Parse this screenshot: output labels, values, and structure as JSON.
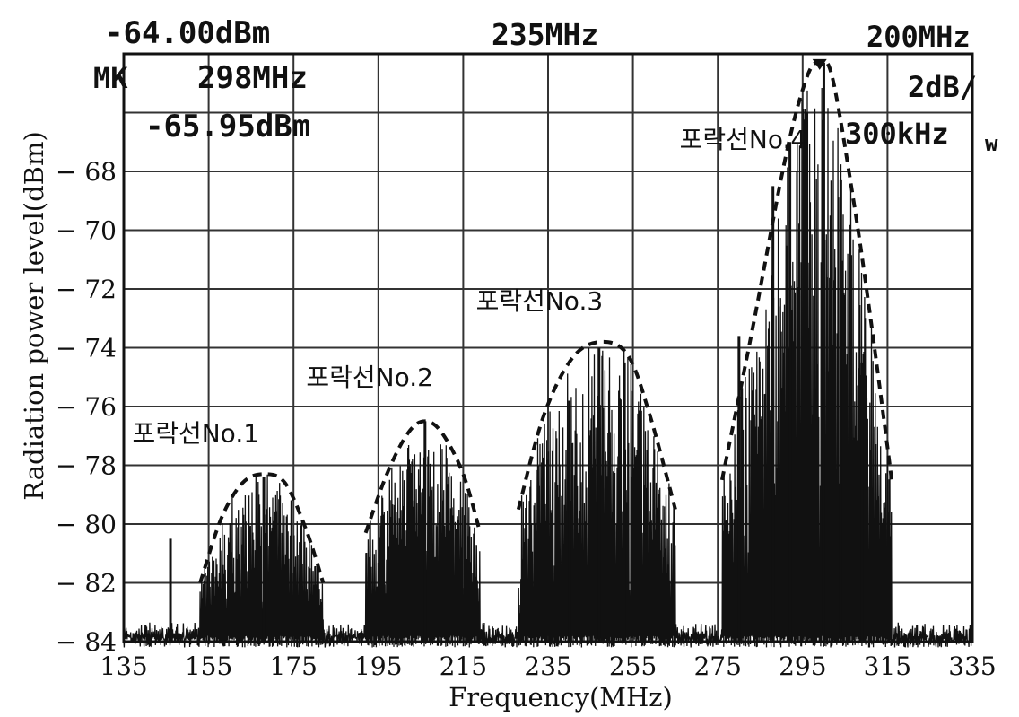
{
  "header": {
    "ref_level": "-64.00dBm",
    "center_freq": "235MHz",
    "span": "200MHz",
    "marker_label": "MK",
    "marker_freq": "298MHz",
    "marker_level": "-65.95dBm",
    "scale": "2dB/",
    "rbw": "300kHz",
    "rbw_unit": "w"
  },
  "chart_data": {
    "type": "line",
    "xlabel": "Frequency(MHz)",
    "ylabel": "Radiation power level(dBm)",
    "xlim": [
      135,
      335
    ],
    "ylim": [
      -84,
      -64
    ],
    "x_ticks": [
      135,
      155,
      175,
      195,
      215,
      235,
      255,
      275,
      295,
      315,
      335
    ],
    "y_ticks": [
      -68,
      -70,
      -72,
      -74,
      -76,
      -78,
      -80,
      -82,
      -84
    ],
    "grid": true,
    "annotations": [
      {
        "text": "포락선No.1",
        "x": 137,
        "y": -77.2
      },
      {
        "text": "포락선No.2",
        "x": 178,
        "y": -75.3
      },
      {
        "text": "포락선No.3",
        "x": 218,
        "y": -72.7
      },
      {
        "text": "포락선No.4",
        "x": 266,
        "y": -67.2
      }
    ],
    "envelopes": [
      {
        "peak_x": 168,
        "peak_y": -78.3,
        "x": [
          153,
          158,
          163,
          168,
          173,
          178,
          182
        ],
        "y": [
          -82,
          -79.8,
          -78.6,
          -78.3,
          -78.6,
          -80.2,
          -82
        ]
      },
      {
        "peak_x": 206,
        "peak_y": -76.5,
        "x": [
          192,
          197,
          202,
          206,
          210,
          215,
          219
        ],
        "y": [
          -80.3,
          -78.3,
          -76.9,
          -76.5,
          -76.9,
          -78.3,
          -80.3
        ]
      },
      {
        "peak_x": 248,
        "peak_y": -73.8,
        "x": [
          228,
          234,
          241,
          248,
          254,
          259,
          265
        ],
        "y": [
          -79.5,
          -76.3,
          -74.3,
          -73.8,
          -74.3,
          -76.3,
          -79.5
        ]
      },
      {
        "peak_x": 299,
        "peak_y": -64.3,
        "x": [
          276,
          283,
          291,
          296,
          299,
          302,
          307,
          311,
          316
        ],
        "y": [
          -78.5,
          -73.5,
          -67.5,
          -64.8,
          -64.3,
          -64.8,
          -69,
          -73,
          -78.5
        ]
      }
    ],
    "spectrum": {
      "peaks": [
        {
          "x": 146,
          "y": -80.5
        },
        {
          "x": 168,
          "y": -78.4
        },
        {
          "x": 206,
          "y": -76.5
        },
        {
          "x": 240,
          "y": -75.8
        },
        {
          "x": 247,
          "y": -74.0
        },
        {
          "x": 253,
          "y": -74.5
        },
        {
          "x": 280,
          "y": -73.6
        },
        {
          "x": 288,
          "y": -68.5
        },
        {
          "x": 292,
          "y": -67.0
        },
        {
          "x": 296,
          "y": -66.0
        },
        {
          "x": 300,
          "y": -64.3
        },
        {
          "x": 304,
          "y": -68.3
        },
        {
          "x": 309,
          "y": -74.5
        }
      ]
    }
  }
}
